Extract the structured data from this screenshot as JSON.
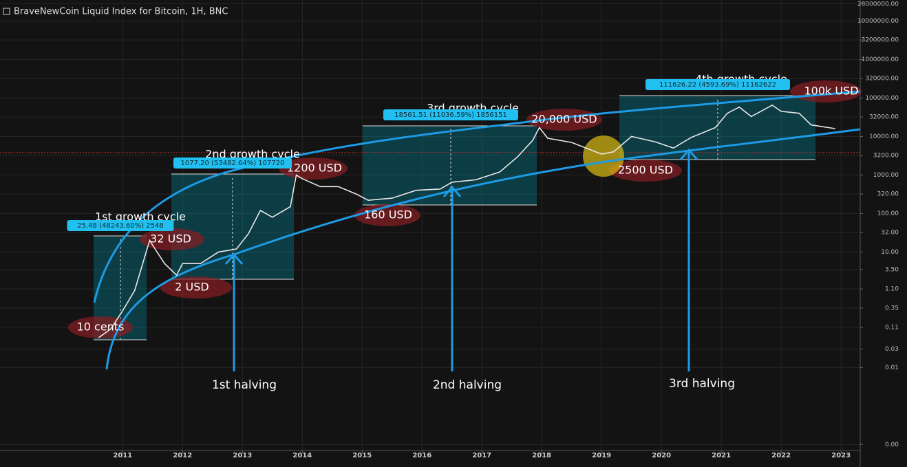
{
  "chart_data": {
    "type": "line",
    "title": "BraveNewCoin Liquid Index for Bitcoin, 1H, BNC",
    "log_y": true,
    "grid": true,
    "xlim": [
      2008.95,
      2023.32
    ],
    "xticks": [
      2011,
      2012,
      2013,
      2014,
      2015,
      2016,
      2017,
      2018,
      2019,
      2020,
      2021,
      2022,
      2023
    ],
    "ylim": [
      7e-05,
      35000000
    ],
    "yticks": [
      {
        "value": 0.0001,
        "label": "0.00"
      },
      {
        "value": 0.01,
        "label": "0.01"
      },
      {
        "value": 0.03,
        "label": "0.03"
      },
      {
        "value": 0.11,
        "label": "0.11"
      },
      {
        "value": 0.35,
        "label": "0.35"
      },
      {
        "value": 1.1,
        "label": "1.10"
      },
      {
        "value": 3.5,
        "label": "3.50"
      },
      {
        "value": 10,
        "label": "10.00"
      },
      {
        "value": 32,
        "label": "32.00"
      },
      {
        "value": 100,
        "label": "100.00"
      },
      {
        "value": 320,
        "label": "320.00"
      },
      {
        "value": 1000,
        "label": "1000.00"
      },
      {
        "value": 3200,
        "label": "3200.00"
      },
      {
        "value": 10000,
        "label": "10000.00"
      },
      {
        "value": 32000,
        "label": "32000.00"
      },
      {
        "value": 100000,
        "label": "100000.00"
      },
      {
        "value": 320000,
        "label": "320000.00"
      },
      {
        "value": 1000000,
        "label": "1000000.00"
      },
      {
        "value": 3200000,
        "label": "3200000.00"
      },
      {
        "value": 10000000,
        "label": "10000000.00"
      },
      {
        "value": 28000000,
        "label": "28000000.00"
      }
    ],
    "series": [
      {
        "name": "BNC",
        "color": "#e8e8e8",
        "x": [
          2010.6,
          2010.8,
          2011.0,
          2011.2,
          2011.45,
          2011.5,
          2011.7,
          2011.9,
          2012.0,
          2012.3,
          2012.6,
          2012.9,
          2013.1,
          2013.3,
          2013.5,
          2013.8,
          2013.9,
          2014.0,
          2014.3,
          2014.6,
          2014.9,
          2015.1,
          2015.5,
          2015.9,
          2016.3,
          2016.5,
          2016.9,
          2017.3,
          2017.6,
          2017.85,
          2017.96,
          2018.1,
          2018.5,
          2018.9,
          2019.0,
          2019.2,
          2019.5,
          2019.9,
          2020.2,
          2020.5,
          2020.9,
          2021.1,
          2021.3,
          2021.5,
          2021.85,
          2022.0,
          2022.3,
          2022.5,
          2022.9
        ],
        "values": [
          0.06,
          0.1,
          0.3,
          1,
          20,
          15,
          5,
          2.5,
          5,
          5,
          10,
          12,
          30,
          120,
          80,
          150,
          1000,
          800,
          500,
          500,
          320,
          220,
          250,
          400,
          430,
          650,
          750,
          1200,
          3000,
          8000,
          17000,
          9000,
          7000,
          4000,
          3500,
          4000,
          10000,
          7200,
          5000,
          9500,
          17000,
          40000,
          58000,
          33000,
          65000,
          45000,
          40000,
          20000,
          16000
        ]
      }
    ],
    "annotations": [
      "1st growth cycle",
      "2nd growth cycle",
      "3rd growth cycle",
      "4th growth cycle",
      "10 cents",
      "32 USD",
      "2 USD",
      "1200 USD",
      "160 USD",
      "20,000 USD",
      "2500 USD",
      "100k USD",
      "1st halving",
      "2nd halving",
      "3rd halving",
      "25.48 (48243.60%) 2548",
      "1077.20 (53482.64%) 107720",
      "18561.51 (11036.59%) 1856151",
      "111626.22 (4593.69%) 11162622"
    ]
  }
}
